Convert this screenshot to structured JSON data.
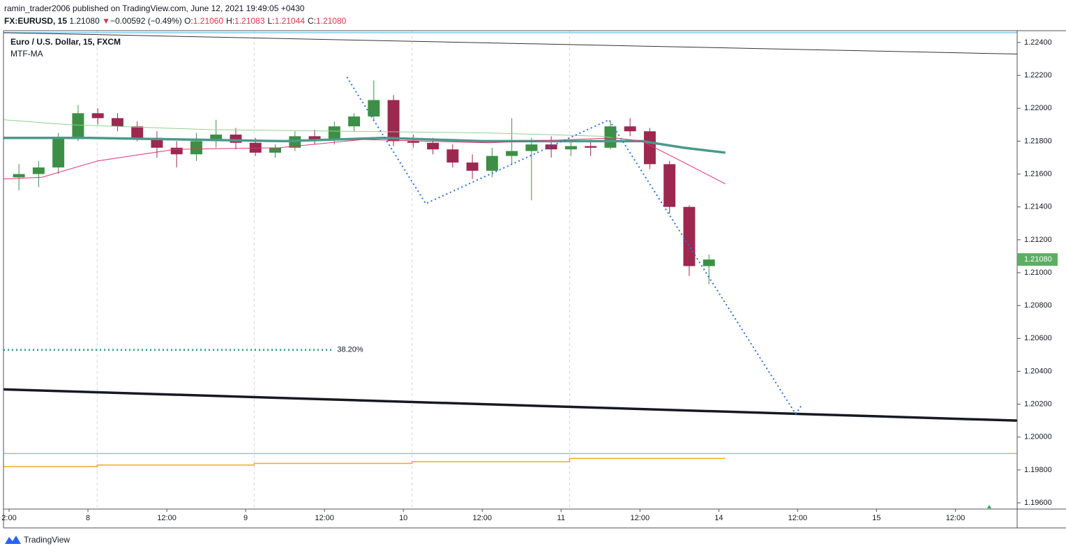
{
  "header": {
    "byline": "ramin_trader2006 published on TradingView.com, June 12, 2021 19:49:05 +0430",
    "symbol": "FX:EURUSD, 15",
    "last": "1.21080",
    "change_arrow": "▼",
    "change": "−0.00592 (−0.49%)",
    "ohlc": [
      {
        "key": "O:",
        "value": "1.21060"
      },
      {
        "key": "H:",
        "value": "1.21083"
      },
      {
        "key": "L:",
        "value": "1.21044"
      },
      {
        "key": "C:",
        "value": "1.21080"
      }
    ],
    "legend_title": "Euro / U.S. Dollar, 15, FXCM",
    "indicator": "MTF-MA"
  },
  "footer": {
    "brand": "TradingView"
  },
  "chart_data": {
    "type": "candlestick",
    "up_color": "#3d8f45",
    "down_color": "#9c2850",
    "xlim": [
      -12.85,
      141.4
    ],
    "ylim": [
      1.19562,
      1.22472
    ],
    "candle_hours": 3,
    "xticks": [
      {
        "value": -12,
        "label": "2:00"
      },
      {
        "value": 0,
        "label": "8"
      },
      {
        "value": 12,
        "label": "12:00"
      },
      {
        "value": 24,
        "label": "9"
      },
      {
        "value": 36,
        "label": "12:00"
      },
      {
        "value": 48,
        "label": "10"
      },
      {
        "value": 60,
        "label": "12:00"
      },
      {
        "value": 72,
        "label": "11"
      },
      {
        "value": 84,
        "label": "12:00"
      },
      {
        "value": 96,
        "label": "14"
      },
      {
        "value": 108,
        "label": "12:00"
      },
      {
        "value": 120,
        "label": "15"
      },
      {
        "value": 132,
        "label": "12:00"
      }
    ],
    "yticks": [
      {
        "value": 1.224,
        "label": "1.22400"
      },
      {
        "value": 1.222,
        "label": "1.22200"
      },
      {
        "value": 1.22,
        "label": "1.22000"
      },
      {
        "value": 1.218,
        "label": "1.21800"
      },
      {
        "value": 1.216,
        "label": "1.21600"
      },
      {
        "value": 1.214,
        "label": "1.21400"
      },
      {
        "value": 1.212,
        "label": "1.21200"
      },
      {
        "value": 1.21,
        "label": "1.21000"
      },
      {
        "value": 1.208,
        "label": "1.20800"
      },
      {
        "value": 1.206,
        "label": "1.20600"
      },
      {
        "value": 1.204,
        "label": "1.20400"
      },
      {
        "value": 1.202,
        "label": "1.20200"
      },
      {
        "value": 1.2,
        "label": "1.20000"
      },
      {
        "value": 1.198,
        "label": "1.19800"
      },
      {
        "value": 1.196,
        "label": "1.19600"
      }
    ],
    "session_breaks": [
      1.4,
      25.3,
      49.3,
      73.3
    ],
    "candles": [
      {
        "x": -12,
        "open": 1.2158,
        "high": 1.2166,
        "low": 1.215,
        "close": 1.216
      },
      {
        "x": -9,
        "open": 1.216,
        "high": 1.2168,
        "low": 1.2152,
        "close": 1.2164
      },
      {
        "x": -6,
        "open": 1.2164,
        "high": 1.2185,
        "low": 1.216,
        "close": 1.2182
      },
      {
        "x": -3,
        "open": 1.2182,
        "high": 1.2202,
        "low": 1.218,
        "close": 1.2197
      },
      {
        "x": 0,
        "open": 1.2197,
        "high": 1.22,
        "low": 1.219,
        "close": 1.2194
      },
      {
        "x": 3,
        "open": 1.2194,
        "high": 1.2197,
        "low": 1.2186,
        "close": 1.2189
      },
      {
        "x": 6,
        "open": 1.2189,
        "high": 1.2192,
        "low": 1.218,
        "close": 1.2182
      },
      {
        "x": 9,
        "open": 1.2182,
        "high": 1.2186,
        "low": 1.217,
        "close": 1.2176
      },
      {
        "x": 12,
        "open": 1.2176,
        "high": 1.218,
        "low": 1.2164,
        "close": 1.2172
      },
      {
        "x": 15,
        "open": 1.2172,
        "high": 1.2185,
        "low": 1.2168,
        "close": 1.218
      },
      {
        "x": 18,
        "open": 1.218,
        "high": 1.2193,
        "low": 1.2176,
        "close": 1.2184
      },
      {
        "x": 21,
        "open": 1.2184,
        "high": 1.2188,
        "low": 1.2175,
        "close": 1.2179
      },
      {
        "x": 24,
        "open": 1.2179,
        "high": 1.2182,
        "low": 1.2171,
        "close": 1.2173
      },
      {
        "x": 27,
        "open": 1.2173,
        "high": 1.2178,
        "low": 1.217,
        "close": 1.2176
      },
      {
        "x": 30,
        "open": 1.2176,
        "high": 1.2186,
        "low": 1.2174,
        "close": 1.2183
      },
      {
        "x": 33,
        "open": 1.2183,
        "high": 1.2187,
        "low": 1.2178,
        "close": 1.2181
      },
      {
        "x": 36,
        "open": 1.2181,
        "high": 1.2192,
        "low": 1.2178,
        "close": 1.2189
      },
      {
        "x": 39,
        "open": 1.2189,
        "high": 1.2197,
        "low": 1.2186,
        "close": 1.2195
      },
      {
        "x": 42,
        "open": 1.2195,
        "high": 1.2217,
        "low": 1.2193,
        "close": 1.2205
      },
      {
        "x": 45,
        "open": 1.2205,
        "high": 1.2208,
        "low": 1.2177,
        "close": 1.218
      },
      {
        "x": 48,
        "open": 1.218,
        "high": 1.2184,
        "low": 1.2176,
        "close": 1.2179
      },
      {
        "x": 51,
        "open": 1.2179,
        "high": 1.2182,
        "low": 1.2172,
        "close": 1.2175
      },
      {
        "x": 54,
        "open": 1.2175,
        "high": 1.2178,
        "low": 1.2164,
        "close": 1.2167
      },
      {
        "x": 57,
        "open": 1.2167,
        "high": 1.2172,
        "low": 1.2157,
        "close": 1.2162
      },
      {
        "x": 60,
        "open": 1.2162,
        "high": 1.2176,
        "low": 1.2158,
        "close": 1.2171
      },
      {
        "x": 63,
        "open": 1.2171,
        "high": 1.2194,
        "low": 1.2166,
        "close": 1.2174
      },
      {
        "x": 66,
        "open": 1.2174,
        "high": 1.2182,
        "low": 1.2144,
        "close": 1.2178
      },
      {
        "x": 69,
        "open": 1.2178,
        "high": 1.2183,
        "low": 1.217,
        "close": 1.2175
      },
      {
        "x": 72,
        "open": 1.2175,
        "high": 1.218,
        "low": 1.2171,
        "close": 1.2177
      },
      {
        "x": 75,
        "open": 1.2177,
        "high": 1.2181,
        "low": 1.2171,
        "close": 1.2176
      },
      {
        "x": 78,
        "open": 1.2176,
        "high": 1.2192,
        "low": 1.2175,
        "close": 1.2189
      },
      {
        "x": 81,
        "open": 1.2189,
        "high": 1.2194,
        "low": 1.2183,
        "close": 1.2186
      },
      {
        "x": 84,
        "open": 1.2186,
        "high": 1.2188,
        "low": 1.2163,
        "close": 1.2166
      },
      {
        "x": 87,
        "open": 1.2166,
        "high": 1.2168,
        "low": 1.2136,
        "close": 1.214
      },
      {
        "x": 90,
        "open": 1.214,
        "high": 1.2141,
        "low": 1.2098,
        "close": 1.2104
      },
      {
        "x": 93,
        "open": 1.2104,
        "high": 1.2111,
        "low": 1.2093,
        "close": 1.2108
      }
    ],
    "lines": [
      {
        "style": "solid",
        "color": "#7fc8f0",
        "x": [
          -12.85,
          141.4
        ],
        "values": [
          1.2246,
          1.2246
        ]
      },
      {
        "style": "solid",
        "color": "#7fc8f0",
        "x": [
          -12.85,
          141.4
        ],
        "values": [
          1.199,
          1.199
        ]
      },
      {
        "style": "thin",
        "color": "#333333",
        "x": [
          -12.85,
          141.4
        ],
        "values": [
          1.2246,
          1.2233
        ]
      },
      {
        "style": "heavy",
        "color": "#151a22",
        "x": [
          -12.85,
          141.4
        ],
        "values": [
          1.2029,
          1.201
        ]
      },
      {
        "style": "thin",
        "color": "#8fd18f",
        "x": [
          -12.8,
          -2.8,
          18.5,
          39.7,
          61,
          78,
          84.3,
          97
        ],
        "values": [
          1.2193,
          1.219,
          1.2187,
          1.2186,
          1.2185,
          1.2183,
          1.218,
          1.2173
        ]
      },
      {
        "style": "thick",
        "color": "#4a9a8a",
        "x": [
          -12.8,
          0,
          30,
          45,
          60,
          84.3,
          90.7,
          97
        ],
        "values": [
          1.2182,
          1.2182,
          1.218,
          1.2182,
          1.218,
          1.218,
          1.2176,
          1.2173
        ]
      },
      {
        "style": "thin",
        "color": "#e0336e",
        "x": [
          -12.8,
          -7,
          1.5,
          13.2,
          29.1,
          41.8,
          61,
          80.1,
          84.3,
          90.7,
          97
        ],
        "values": [
          1.2157,
          1.2158,
          1.2168,
          1.2175,
          1.2176,
          1.2181,
          1.2179,
          1.2182,
          1.218,
          1.2167,
          1.2154
        ]
      },
      {
        "style": "step",
        "color": "#f5a623",
        "x": [
          -12.85,
          1.4,
          25.3,
          49.3,
          73.3,
          97
        ],
        "values": [
          1.1982,
          1.1983,
          1.1984,
          1.1985,
          1.1987,
          1.1987
        ]
      },
      {
        "style": "dotted",
        "color": "#2a6fd6",
        "x": [
          39.4,
          51.4,
          79.3,
          107.7,
          108.7
        ],
        "values": [
          1.2219,
          1.2142,
          1.2193,
          1.2014,
          1.202
        ]
      }
    ],
    "fib": {
      "level": {
        "value": 38.2,
        "label": "38.20%"
      },
      "color": "#22998a",
      "x": [
        -12.85,
        37.4
      ],
      "values": [
        1.2053,
        1.2053
      ]
    },
    "last_price": {
      "value": 1.2108,
      "label": "1.21080"
    },
    "last_price_color": "#5cae63"
  }
}
